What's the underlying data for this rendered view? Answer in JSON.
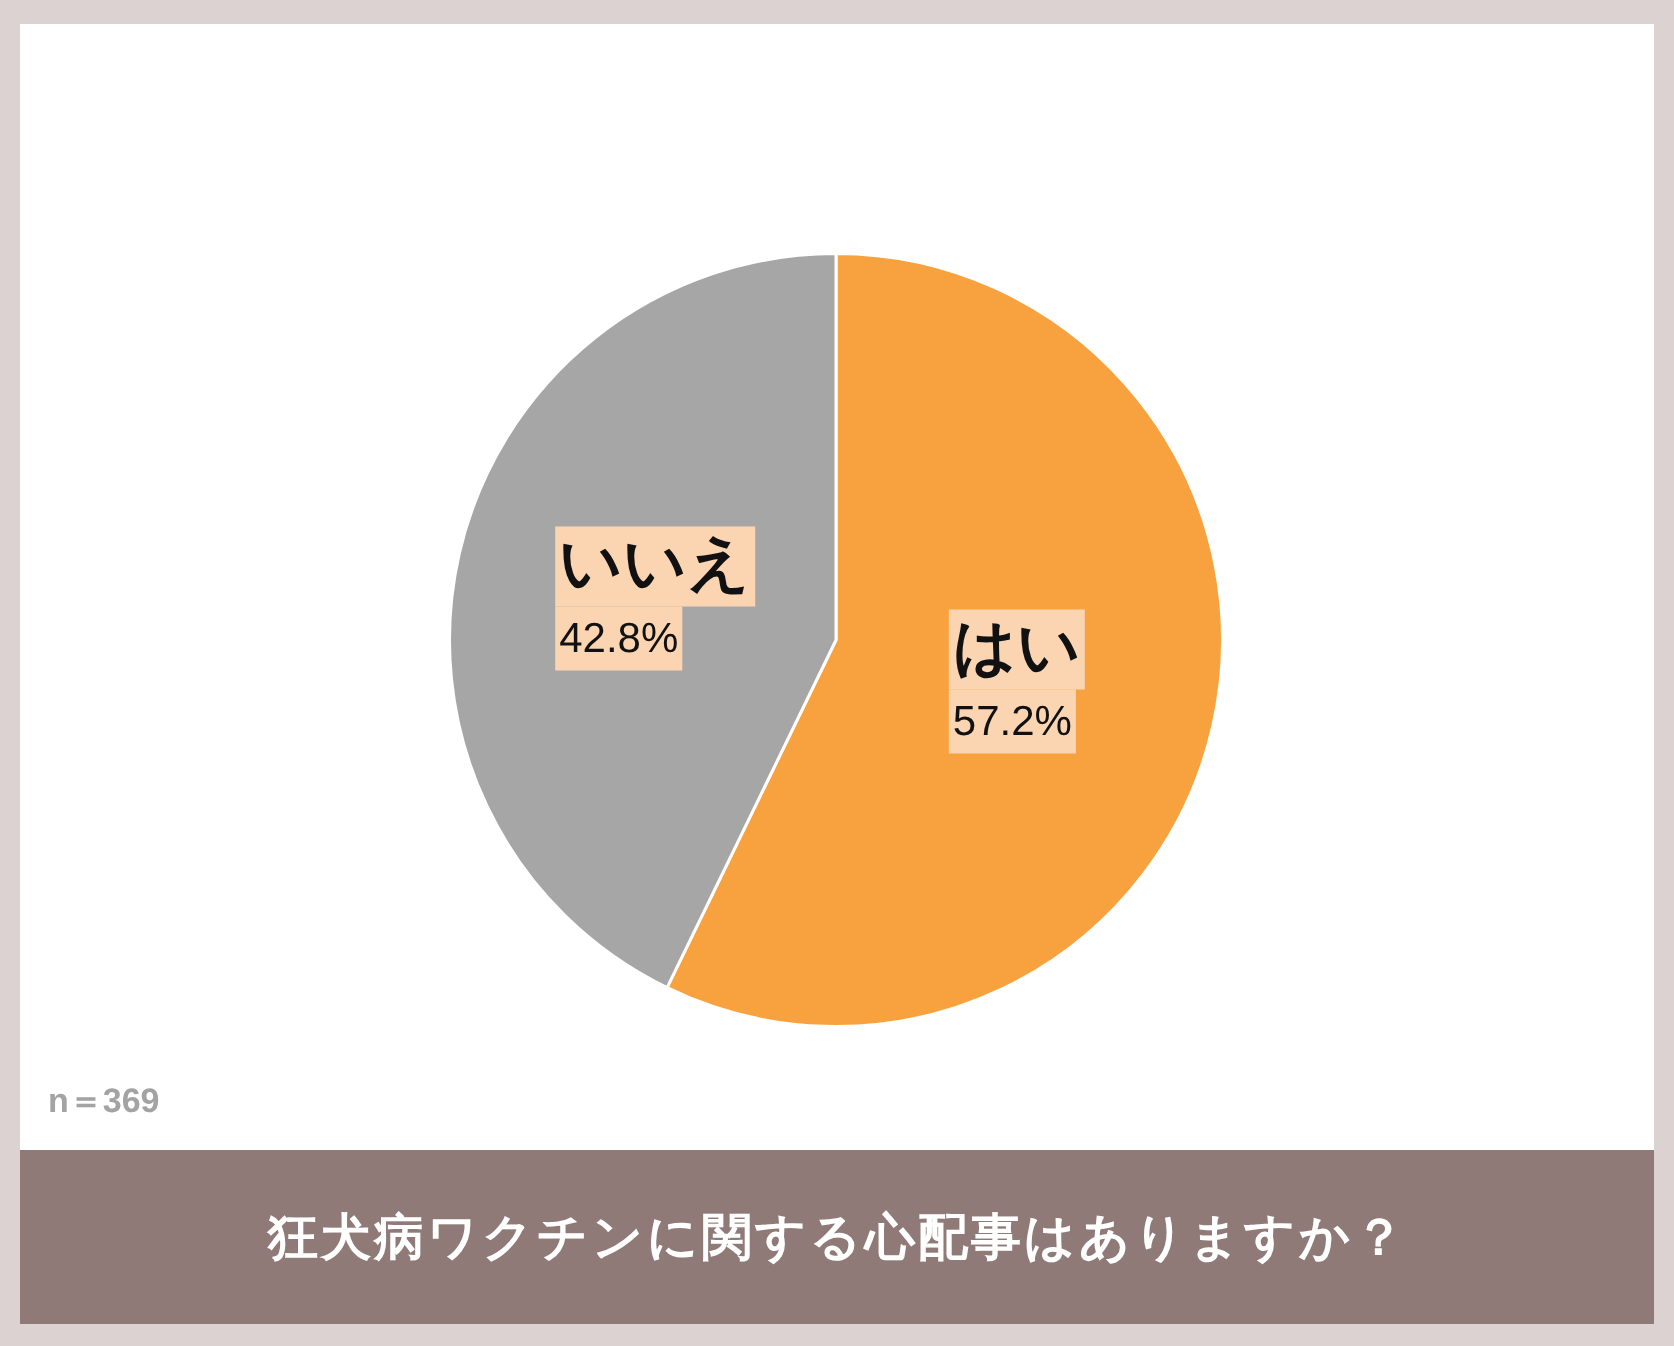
{
  "chart_data": {
    "type": "pie",
    "title": "狂犬病ワクチンに関する心配事はありますか？",
    "categories": [
      "はい",
      "いいえ"
    ],
    "values": [
      57.2,
      42.8
    ],
    "colors": [
      "#f7a23f",
      "#a6a6a6"
    ],
    "value_labels": [
      "57.2%",
      "42.8%"
    ],
    "annotations": [
      "n＝369"
    ]
  }
}
